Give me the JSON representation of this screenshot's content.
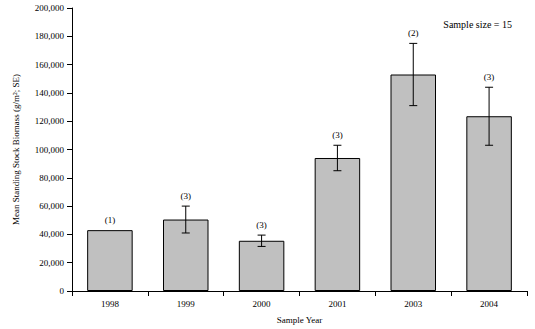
{
  "chart_data": {
    "type": "bar",
    "categories": [
      "1998",
      "1999",
      "2000",
      "2001",
      "2003",
      "2004"
    ],
    "values": [
      43000,
      50500,
      35500,
      94000,
      153000,
      123500
    ],
    "errors": [
      null,
      9500,
      4000,
      9000,
      22000,
      20500
    ],
    "annotations": [
      "(1)",
      "(3)",
      "(3)",
      "(3)",
      "(2)",
      "(3)"
    ],
    "note": "Sample size = 15",
    "color": "#c0c0c0",
    "x_label": "Sample Year",
    "y_label": "Mean Standing Stock Biomass (g/m²; SE)",
    "ylim": [
      0,
      200000
    ],
    "yticks": [
      0,
      {
        "value": 20000,
        "label": "20,000"
      },
      {
        "value": 40000,
        "label": "40,000"
      },
      {
        "value": 60000,
        "label": "60,000"
      },
      {
        "value": 80000,
        "label": "80,000"
      },
      {
        "value": 100000,
        "label": "100,000"
      },
      {
        "value": 120000,
        "label": "120,000"
      },
      {
        "value": 140000,
        "label": "140,000"
      },
      {
        "value": 160000,
        "label": "160,000"
      },
      {
        "value": 180000,
        "label": "180,000"
      },
      {
        "value": 200000,
        "label": "200,000"
      }
    ],
    "grid": false
  }
}
